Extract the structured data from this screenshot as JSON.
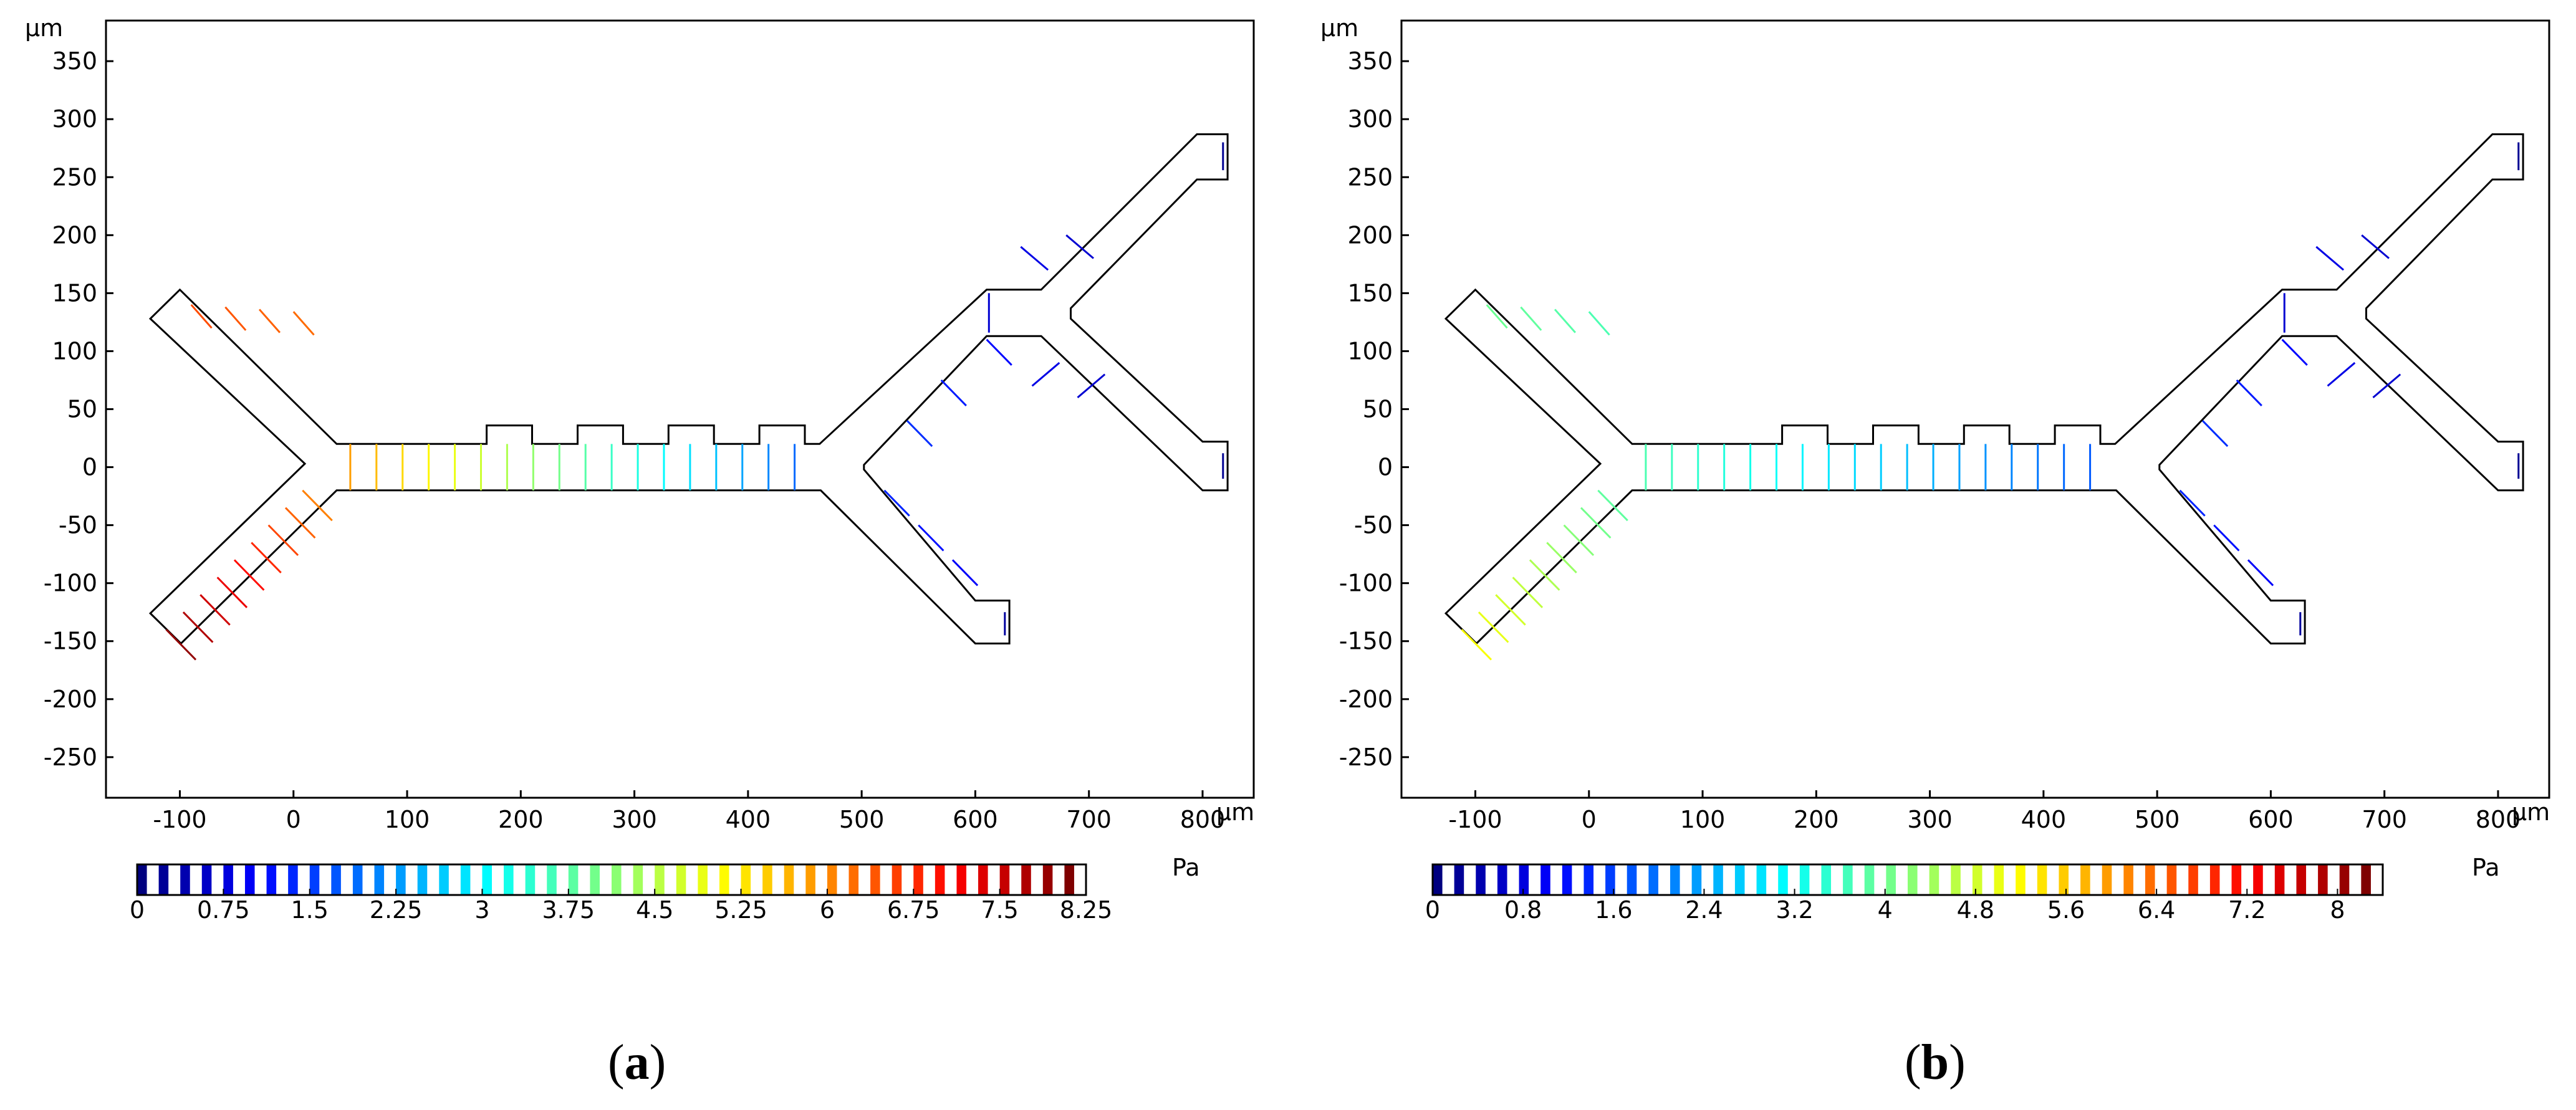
{
  "panels": [
    {
      "id": "a",
      "label": "a",
      "axis_unit": "µm",
      "x_ticks": [
        "-100",
        "0",
        "100",
        "200",
        "300",
        "400",
        "500",
        "600",
        "700",
        "800"
      ],
      "y_ticks": [
        "350",
        "300",
        "250",
        "200",
        "150",
        "100",
        "50",
        "0",
        "-50",
        "-100",
        "-150",
        "-200",
        "-250"
      ],
      "colorbar": {
        "unit": "Pa",
        "min": 0,
        "max": 8.25,
        "tick_labels": [
          "0",
          "0.75",
          "1.5",
          "2.25",
          "3",
          "3.75",
          "4.5",
          "5.25",
          "6",
          "6.75",
          "7.5",
          "8.25"
        ]
      }
    },
    {
      "id": "b",
      "label": "b",
      "axis_unit": "µm",
      "x_ticks": [
        "-100",
        "0",
        "100",
        "200",
        "300",
        "400",
        "500",
        "600",
        "700",
        "800"
      ],
      "y_ticks": [
        "350",
        "300",
        "250",
        "200",
        "150",
        "100",
        "50",
        "0",
        "-50",
        "-100",
        "-150",
        "-200",
        "-250"
      ],
      "colorbar": {
        "unit": "Pa",
        "min": 0,
        "max": 8.4,
        "tick_labels": [
          "0",
          "0.8",
          "1.6",
          "2.4",
          "3.2",
          "4",
          "4.8",
          "5.6",
          "6.4",
          "7.2",
          "8"
        ]
      }
    }
  ],
  "colors": {
    "colormap": [
      "#00007f",
      "#0000ff",
      "#007fff",
      "#00ffff",
      "#7fff7f",
      "#ffff00",
      "#ff7f00",
      "#ff0000",
      "#7f0000"
    ],
    "outline": "#000000"
  }
}
